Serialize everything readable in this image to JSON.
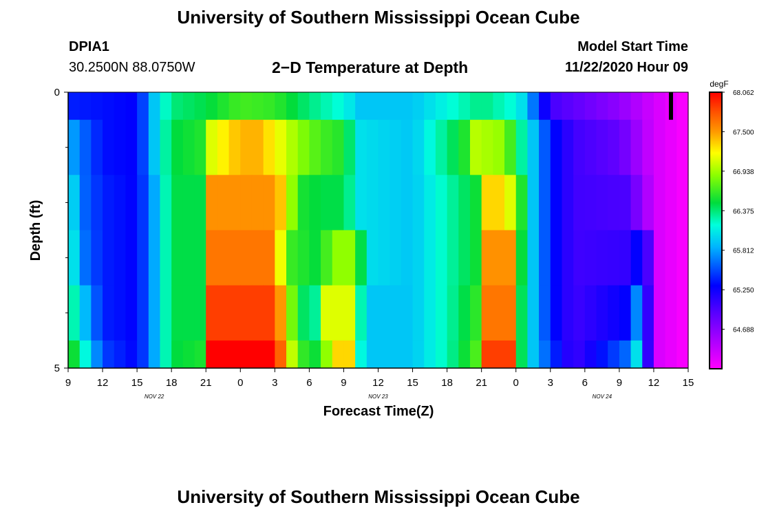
{
  "page": {
    "title_top": "University of Southern Mississippi Ocean Cube",
    "title_bottom": "University of Southern Mississippi Ocean Cube",
    "station_id": "DPIA1",
    "station_coords": "30.2500N 88.0750W",
    "center_title": "2−D Temperature at Depth",
    "model_start_label": "Model Start Time",
    "model_start_value": "11/22/2020 Hour 09"
  },
  "chart_data": {
    "type": "heatmap",
    "title": "2−D Temperature at Depth",
    "xlabel": "Forecast Time(Z)",
    "ylabel": "Depth (ft)",
    "x_hours": [
      0,
      54
    ],
    "x_ticks": [
      {
        "h": 0,
        "label": "9"
      },
      {
        "h": 3,
        "label": "12"
      },
      {
        "h": 6,
        "label": "15"
      },
      {
        "h": 9,
        "label": "18"
      },
      {
        "h": 12,
        "label": "21"
      },
      {
        "h": 15,
        "label": "0"
      },
      {
        "h": 18,
        "label": "3"
      },
      {
        "h": 21,
        "label": "6"
      },
      {
        "h": 24,
        "label": "9"
      },
      {
        "h": 27,
        "label": "12"
      },
      {
        "h": 30,
        "label": "15"
      },
      {
        "h": 33,
        "label": "18"
      },
      {
        "h": 36,
        "label": "21"
      },
      {
        "h": 39,
        "label": "0"
      },
      {
        "h": 42,
        "label": "3"
      },
      {
        "h": 45,
        "label": "6"
      },
      {
        "h": 48,
        "label": "9"
      },
      {
        "h": 51,
        "label": "12"
      },
      {
        "h": 54,
        "label": "15"
      }
    ],
    "date_labels": [
      {
        "h": 7.5,
        "label": "NOV 22"
      },
      {
        "h": 27,
        "label": "NOV 23"
      },
      {
        "h": 46.5,
        "label": "NOV 24"
      }
    ],
    "ylim": [
      0,
      5
    ],
    "y_ticks": [
      {
        "v": 0,
        "label": "0"
      },
      {
        "v": 5,
        "label": "5"
      }
    ],
    "y_minor_ticks": [
      1,
      2,
      3,
      4
    ],
    "depth_layers": 5,
    "colorbar": {
      "unit": "degF",
      "min": 64.125,
      "max": 68.062,
      "tick_values": [
        68.062,
        67.5,
        66.938,
        66.375,
        65.812,
        65.25,
        64.688
      ],
      "tick_labels": [
        "68.062",
        "67.500",
        "66.938",
        "66.375",
        "65.812",
        "65.250",
        "64.688"
      ]
    },
    "current_time_marker_hour": 52.5,
    "layer_keyframes": [
      [
        [
          0,
          65.3
        ],
        [
          3,
          65.25
        ],
        [
          6,
          65.2
        ],
        [
          7.5,
          65.8
        ],
        [
          9,
          66.2
        ],
        [
          12,
          66.3
        ],
        [
          15,
          66.5
        ],
        [
          18,
          66.45
        ],
        [
          21,
          66.2
        ],
        [
          24,
          66.0
        ],
        [
          25.5,
          65.8
        ],
        [
          30,
          65.8
        ],
        [
          33,
          66.0
        ],
        [
          36,
          66.2
        ],
        [
          39,
          66.0
        ],
        [
          40,
          65.8
        ],
        [
          41,
          65.3
        ],
        [
          42.5,
          64.9
        ],
        [
          48,
          64.6
        ],
        [
          51,
          64.3
        ],
        [
          54,
          64.1
        ]
      ],
      [
        [
          0,
          65.75
        ],
        [
          1,
          65.55
        ],
        [
          3,
          65.25
        ],
        [
          6,
          65.2
        ],
        [
          7.5,
          65.8
        ],
        [
          9,
          66.3
        ],
        [
          11.5,
          66.4
        ],
        [
          12.5,
          66.9
        ],
        [
          15,
          67.2
        ],
        [
          16.5,
          67.2
        ],
        [
          18,
          67.0
        ],
        [
          20,
          66.7
        ],
        [
          22,
          66.5
        ],
        [
          24,
          66.4
        ],
        [
          25.5,
          65.9
        ],
        [
          30,
          65.8
        ],
        [
          33,
          66.2
        ],
        [
          34.5,
          66.4
        ],
        [
          35.5,
          66.8
        ],
        [
          38,
          66.7
        ],
        [
          39,
          66.3
        ],
        [
          40.5,
          65.8
        ],
        [
          42,
          65.3
        ],
        [
          44,
          64.95
        ],
        [
          48,
          64.8
        ],
        [
          51,
          64.3
        ],
        [
          54,
          64.1
        ]
      ],
      [
        [
          0,
          66.1
        ],
        [
          1,
          65.55
        ],
        [
          3,
          65.3
        ],
        [
          6,
          65.2
        ],
        [
          7.5,
          65.7
        ],
        [
          9,
          66.3
        ],
        [
          12,
          66.3
        ],
        [
          12.5,
          67.3
        ],
        [
          18,
          67.3
        ],
        [
          19,
          67.0
        ],
        [
          20,
          66.4
        ],
        [
          22,
          66.3
        ],
        [
          24,
          66.3
        ],
        [
          25.5,
          65.9
        ],
        [
          30,
          65.8
        ],
        [
          33,
          66.1
        ],
        [
          36,
          66.4
        ],
        [
          36.5,
          67.1
        ],
        [
          38,
          67.1
        ],
        [
          39,
          66.7
        ],
        [
          40.5,
          65.8
        ],
        [
          42,
          65.3
        ],
        [
          44,
          64.95
        ],
        [
          48.5,
          64.9
        ],
        [
          50,
          64.6
        ],
        [
          51,
          64.3
        ],
        [
          54,
          64.1
        ]
      ],
      [
        [
          0,
          66.2
        ],
        [
          1,
          65.6
        ],
        [
          3,
          65.3
        ],
        [
          6,
          65.2
        ],
        [
          7.5,
          65.7
        ],
        [
          9,
          66.3
        ],
        [
          12,
          66.3
        ],
        [
          12.5,
          67.4
        ],
        [
          18,
          67.4
        ],
        [
          19,
          66.5
        ],
        [
          22,
          66.3
        ],
        [
          23,
          66.7
        ],
        [
          25,
          66.7
        ],
        [
          26,
          65.9
        ],
        [
          30,
          65.8
        ],
        [
          33,
          66.1
        ],
        [
          36,
          66.4
        ],
        [
          36.5,
          67.3
        ],
        [
          38.5,
          67.3
        ],
        [
          39,
          66.6
        ],
        [
          40.5,
          65.8
        ],
        [
          42,
          65.3
        ],
        [
          44,
          64.95
        ],
        [
          48.5,
          65.0
        ],
        [
          49,
          65.2
        ],
        [
          50,
          65.2
        ],
        [
          50.5,
          64.9
        ],
        [
          51,
          64.3
        ],
        [
          54,
          64.1
        ]
      ],
      [
        [
          0,
          66.3
        ],
        [
          1,
          65.9
        ],
        [
          3,
          65.3
        ],
        [
          6,
          65.2
        ],
        [
          7.5,
          65.7
        ],
        [
          9,
          66.3
        ],
        [
          12,
          66.3
        ],
        [
          12.5,
          67.6
        ],
        [
          18,
          67.6
        ],
        [
          20,
          66.3
        ],
        [
          22,
          66.1
        ],
        [
          22.5,
          66.9
        ],
        [
          25,
          66.9
        ],
        [
          25.5,
          66.1
        ],
        [
          26,
          65.8
        ],
        [
          30,
          65.8
        ],
        [
          33,
          66.1
        ],
        [
          36,
          66.5
        ],
        [
          36.5,
          67.4
        ],
        [
          38.5,
          67.4
        ],
        [
          39,
          66.5
        ],
        [
          40.5,
          65.8
        ],
        [
          42,
          65.3
        ],
        [
          44,
          64.95
        ],
        [
          48.5,
          65.2
        ],
        [
          49,
          65.6
        ],
        [
          50,
          65.6
        ],
        [
          50.5,
          65.0
        ],
        [
          51,
          64.3
        ],
        [
          54,
          64.1
        ]
      ],
      [
        [
          0,
          66.5
        ],
        [
          1,
          66.2
        ],
        [
          2,
          65.8
        ],
        [
          3,
          65.4
        ],
        [
          6,
          65.2
        ],
        [
          7.5,
          65.7
        ],
        [
          9,
          66.3
        ],
        [
          12,
          66.4
        ],
        [
          12.5,
          67.8
        ],
        [
          18,
          67.8
        ],
        [
          20,
          66.5
        ],
        [
          22,
          66.3
        ],
        [
          23,
          67.1
        ],
        [
          25,
          67.1
        ],
        [
          25.5,
          66.0
        ],
        [
          26,
          65.8
        ],
        [
          30,
          65.8
        ],
        [
          33,
          66.1
        ],
        [
          36,
          66.6
        ],
        [
          36.5,
          67.6
        ],
        [
          38.5,
          67.6
        ],
        [
          39,
          66.5
        ],
        [
          40.5,
          65.8
        ],
        [
          42,
          65.4
        ],
        [
          44,
          64.95
        ],
        [
          48.5,
          65.5
        ],
        [
          49,
          65.9
        ],
        [
          50,
          65.9
        ],
        [
          50.5,
          65.0
        ],
        [
          51,
          64.3
        ],
        [
          54,
          64.1
        ]
      ]
    ],
    "layer_value_range": [
      64.1,
      67.8
    ]
  },
  "colors": {
    "background": "#ffffff",
    "axis": "#000000",
    "marker": "#000000"
  }
}
